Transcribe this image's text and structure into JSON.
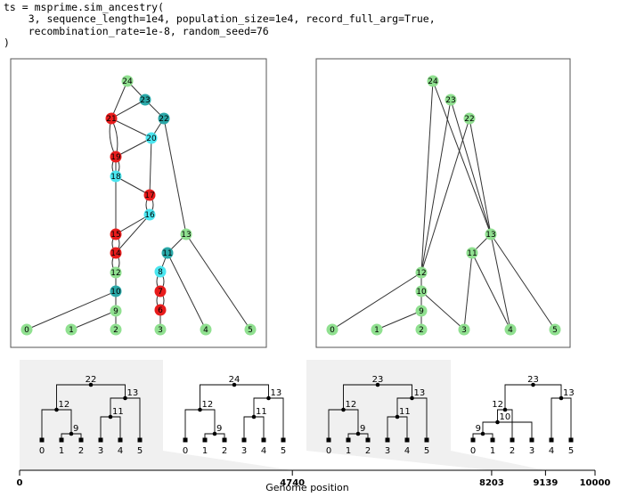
{
  "code": {
    "lines": [
      "ts = msprime.sim_ancestry(",
      "    3, sequence_length=1e4, population_size=1e4, record_full_arg=True,",
      "    recombination_rate=1e-8, random_seed=76",
      ")"
    ]
  },
  "colors": {
    "sample": "#90e090",
    "common_ancestor": "#2aa8a8",
    "recombination": "#e81c1c",
    "noncoal": "#4ae6f0",
    "shading": "#f0f0f0"
  },
  "full_arg": {
    "nodes": [
      {
        "id": "0",
        "kind": "sample"
      },
      {
        "id": "1",
        "kind": "sample"
      },
      {
        "id": "2",
        "kind": "sample"
      },
      {
        "id": "3",
        "kind": "sample"
      },
      {
        "id": "4",
        "kind": "sample"
      },
      {
        "id": "5",
        "kind": "sample"
      },
      {
        "id": "6",
        "kind": "recombination"
      },
      {
        "id": "7",
        "kind": "recombination"
      },
      {
        "id": "8",
        "kind": "noncoal"
      },
      {
        "id": "9",
        "kind": "sample"
      },
      {
        "id": "10",
        "kind": "common_ancestor"
      },
      {
        "id": "11",
        "kind": "common_ancestor"
      },
      {
        "id": "12",
        "kind": "sample"
      },
      {
        "id": "13",
        "kind": "sample"
      },
      {
        "id": "14",
        "kind": "recombination"
      },
      {
        "id": "15",
        "kind": "recombination"
      },
      {
        "id": "16",
        "kind": "noncoal"
      },
      {
        "id": "17",
        "kind": "recombination"
      },
      {
        "id": "18",
        "kind": "noncoal"
      },
      {
        "id": "19",
        "kind": "recombination"
      },
      {
        "id": "20",
        "kind": "noncoal"
      },
      {
        "id": "21",
        "kind": "recombination"
      },
      {
        "id": "22",
        "kind": "common_ancestor"
      },
      {
        "id": "23",
        "kind": "common_ancestor"
      },
      {
        "id": "24",
        "kind": "sample"
      }
    ]
  },
  "simplified_arg": {
    "nodes": [
      {
        "id": "0"
      },
      {
        "id": "1"
      },
      {
        "id": "2"
      },
      {
        "id": "3"
      },
      {
        "id": "4"
      },
      {
        "id": "5"
      },
      {
        "id": "9"
      },
      {
        "id": "10"
      },
      {
        "id": "11"
      },
      {
        "id": "12"
      },
      {
        "id": "13"
      },
      {
        "id": "22"
      },
      {
        "id": "23"
      },
      {
        "id": "24"
      }
    ]
  },
  "trees": [
    {
      "labels": [
        "0",
        "1",
        "2",
        "3",
        "4",
        "5",
        "9",
        "11",
        "12",
        "13",
        "22"
      ]
    },
    {
      "labels": [
        "0",
        "1",
        "2",
        "3",
        "4",
        "5",
        "9",
        "11",
        "12",
        "13",
        "24"
      ]
    },
    {
      "labels": [
        "0",
        "1",
        "2",
        "3",
        "4",
        "5",
        "9",
        "11",
        "12",
        "13",
        "23"
      ]
    },
    {
      "labels": [
        "0",
        "1",
        "2",
        "3",
        "4",
        "5",
        "9",
        "10",
        "12",
        "13",
        "23"
      ]
    }
  ],
  "axis": {
    "label": "Genome position",
    "ticks": [
      "0",
      "4740",
      "8203",
      "9139",
      "10000"
    ],
    "positions": [
      0,
      4740,
      8203,
      9139,
      10000
    ],
    "sequence_length": 10000
  }
}
